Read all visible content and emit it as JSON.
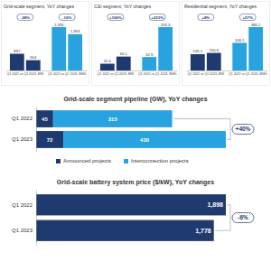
{
  "chart_data": [
    {
      "type": "bar",
      "title": "Grid-scale segment, YoY changes",
      "categories": [
        "Q1 2022 vs Q1 2023, MW",
        "Q1 2022 vs Q1 2023, MWh"
      ],
      "series": [
        {
          "values": [
            897,
            2333
          ],
          "value_labels": [
            "897",
            "2,333"
          ],
          "colors": [
            "#1f3a6e",
            "#29a3e0"
          ]
        },
        {
          "values": [
            554,
            1953
          ],
          "value_labels": [
            "554",
            "1,953"
          ],
          "colors": [
            "#1f3a6e",
            "#29a3e0"
          ]
        }
      ],
      "annotations": [
        "-38%",
        "-16%"
      ],
      "data_labels": true,
      "tick_labels": "x"
    },
    {
      "type": "bar",
      "title": "C&I segment, YoY changes",
      "categories": [
        "Q1 2022 vs Q1 2023, MW",
        "Q1 2022 vs Q1 2023, MWh"
      ],
      "series": [
        {
          "values": [
            31.6,
            62.9
          ],
          "colors": [
            "#1f3a6e",
            "#29a3e0"
          ]
        },
        {
          "values": [
            65.1,
            203.3
          ],
          "colors": [
            "#1f3a6e",
            "#29a3e0"
          ]
        }
      ],
      "annotations": [
        "+106%",
        "+223%"
      ],
      "data_labels": true,
      "tick_labels": "x"
    },
    {
      "type": "bar",
      "title": "Residential segment, YoY changes",
      "categories": [
        "Q1 2022 vs Q1 2023, MW",
        "Q1 2022 vs Q1 2023, MWh"
      ],
      "series": [
        {
          "values": [
            145.1,
            246.1
          ],
          "colors": [
            "#1f3a6e",
            "#29a3e0"
          ]
        },
        {
          "values": [
            156.6,
            386.2
          ],
          "colors": [
            "#1f3a6e",
            "#29a3e0"
          ]
        }
      ],
      "annotations": [
        "+8%",
        "+57%"
      ],
      "data_labels": true,
      "tick_labels": "x"
    },
    {
      "type": "bar",
      "orientation": "horizontal",
      "stacked": true,
      "title": "Grid-scale segment pipeline (GW), YoY changes",
      "categories": [
        "Q1 2022",
        "Q1 2023"
      ],
      "series": [
        {
          "name": "Announced projects",
          "color": "#1f3a6e",
          "values": [
            45,
            72
          ]
        },
        {
          "name": "Interconnection projects",
          "color": "#29a3e0",
          "values": [
            315,
            430
          ]
        }
      ],
      "annotations": [
        "+40%"
      ],
      "data_labels": true,
      "legend": "bottom",
      "tick_labels": "y"
    },
    {
      "type": "bar",
      "orientation": "horizontal",
      "title": "Grid-scale battery system price ($/kW), YoY changes",
      "categories": [
        "Q1 2022",
        "Q1 2023"
      ],
      "values": [
        1898,
        1778
      ],
      "value_labels": [
        "1,898",
        "1,778"
      ],
      "color": "#1f3a6e",
      "annotations": [
        "-6%"
      ],
      "data_labels": true,
      "tick_labels": "y"
    }
  ]
}
